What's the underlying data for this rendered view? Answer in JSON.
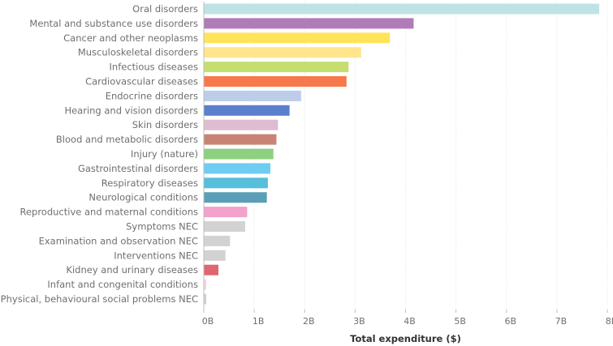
{
  "chart_data": {
    "type": "bar",
    "orientation": "horizontal",
    "title": "",
    "xlabel": "Total expenditure ($)",
    "ylabel": "",
    "xlim": [
      0,
      8
    ],
    "unit_suffix": "B",
    "xticks": [
      "0B",
      "1B",
      "2B",
      "3B",
      "4B",
      "5B",
      "6B",
      "7B",
      "8B"
    ],
    "grid": true,
    "legend": "none",
    "categories": [
      "Oral disorders",
      "Mental and substance use disorders",
      "Cancer and other neoplasms",
      "Musculoskeletal disorders",
      "Infectious diseases",
      "Cardiovascular diseases",
      "Endocrine disorders",
      "Hearing and vision disorders",
      "Skin disorders",
      "Blood and metabolic disorders",
      "Injury (nature)",
      "Gastrointestinal disorders",
      "Respiratory diseases",
      "Neurological conditions",
      "Reproductive and maternal conditions",
      "Symptoms NEC",
      "Examination and observation NEC",
      "Interventions NEC",
      "Kidney and urinary diseases",
      "Infant and congenital conditions",
      "Physical, behavioural social problems NEC"
    ],
    "values": [
      7.84,
      4.16,
      3.69,
      3.12,
      2.87,
      2.83,
      1.93,
      1.7,
      1.47,
      1.44,
      1.38,
      1.32,
      1.27,
      1.25,
      0.86,
      0.82,
      0.52,
      0.43,
      0.29,
      0.05,
      0.05
    ],
    "colors": [
      "#bfe3e5",
      "#b07cb8",
      "#ffe45a",
      "#ffe68c",
      "#c6de6f",
      "#f7794b",
      "#bccde9",
      "#5b7fcd",
      "#dfbccf",
      "#c98374",
      "#8ecf80",
      "#6dcdf2",
      "#55bfdc",
      "#5a9fb7",
      "#f2a2cb",
      "#d2d2d2",
      "#d2d2d2",
      "#d2d2d2",
      "#e06671",
      "#f6d6e4",
      "#d2d2d2"
    ]
  }
}
